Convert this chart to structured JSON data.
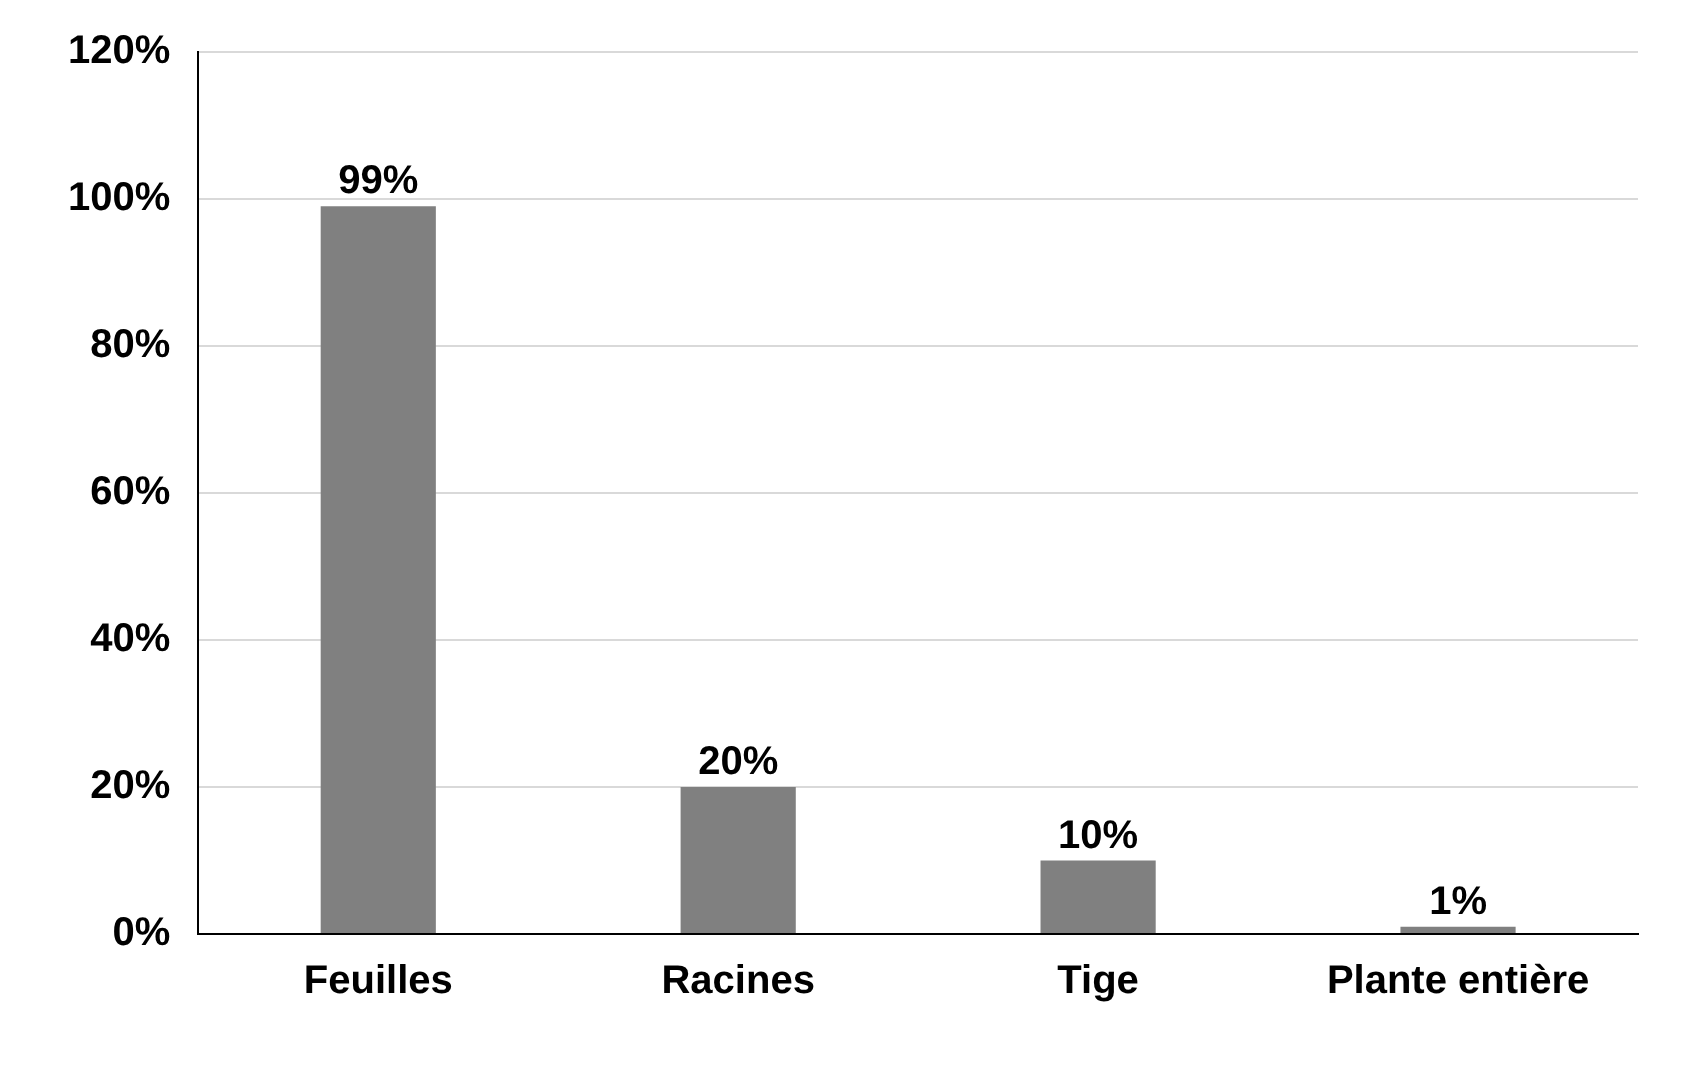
{
  "chart_data": {
    "type": "bar",
    "categories": [
      "Feuilles",
      "Racines",
      "Tige",
      "Plante entière"
    ],
    "values": [
      99,
      20,
      10,
      1
    ],
    "color": "#808080",
    "value_labels": [
      "99%",
      "20%",
      "10%",
      "1%"
    ],
    "ylim": [
      0,
      120
    ],
    "yticks": [
      {
        "value": 0,
        "label": "0%"
      },
      {
        "value": 20,
        "label": "20%"
      },
      {
        "value": 40,
        "label": "40%"
      },
      {
        "value": 60,
        "label": "60%"
      },
      {
        "value": 80,
        "label": "80%"
      },
      {
        "value": 100,
        "label": "100%"
      },
      {
        "value": 120,
        "label": "120%"
      }
    ],
    "grid": "y",
    "legend": false
  }
}
